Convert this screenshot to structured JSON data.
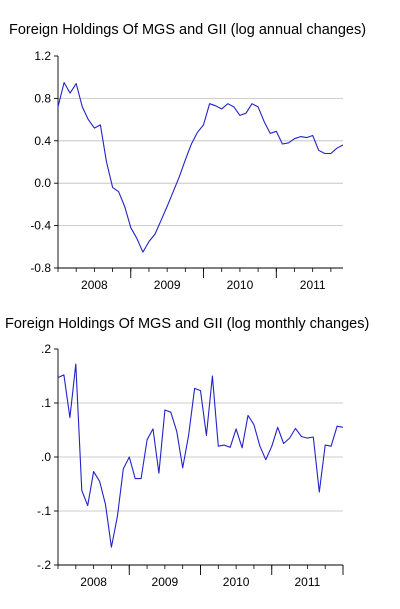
{
  "chart_data": [
    {
      "type": "line",
      "title": "Foreign Holdings Of MGS and GII (log annual changes)",
      "xlabel": "",
      "ylabel": "",
      "ylim": [
        -0.8,
        1.2
      ],
      "yticks": [
        1.2,
        0.8,
        0.4,
        0.0,
        -0.4,
        -0.8
      ],
      "ytick_labels": [
        "1.2",
        "0.8",
        "0.4",
        "0.0",
        "-0.4",
        "-0.8"
      ],
      "year_labels": [
        "2008",
        "2009",
        "2010",
        "2011"
      ],
      "grid": true,
      "color": "#2323c8",
      "x_start": "2008-01",
      "frequency": "monthly",
      "values": [
        0.72,
        0.95,
        0.85,
        0.94,
        0.72,
        0.6,
        0.52,
        0.55,
        0.2,
        -0.04,
        -0.08,
        -0.22,
        -0.42,
        -0.52,
        -0.65,
        -0.55,
        -0.48,
        -0.35,
        -0.22,
        -0.08,
        0.06,
        0.22,
        0.37,
        0.48,
        0.55,
        0.75,
        0.73,
        0.7,
        0.75,
        0.72,
        0.64,
        0.66,
        0.75,
        0.72,
        0.58,
        0.47,
        0.49,
        0.37,
        0.38,
        0.42,
        0.44,
        0.43,
        0.45,
        0.31,
        0.28,
        0.28,
        0.33,
        0.36
      ]
    },
    {
      "type": "line",
      "title": "Foreign Holdings Of MGS and GII (log monthly changes)",
      "xlabel": "",
      "ylabel": "",
      "ylim": [
        -0.2,
        0.2
      ],
      "yticks": [
        0.2,
        0.1,
        0.0,
        -0.1,
        -0.2
      ],
      "ytick_labels": [
        ".2",
        ".1",
        ".0",
        "-.1",
        "-.2"
      ],
      "year_labels": [
        "2008",
        "2009",
        "2010",
        "2011"
      ],
      "grid": true,
      "color": "#2323c8",
      "x_start": "2008-01",
      "frequency": "monthly",
      "values": [
        0.147,
        0.152,
        0.073,
        0.172,
        -0.062,
        -0.09,
        -0.027,
        -0.045,
        -0.088,
        -0.167,
        -0.11,
        -0.022,
        0.0,
        -0.04,
        -0.04,
        0.032,
        0.052,
        -0.03,
        0.087,
        0.083,
        0.047,
        -0.02,
        0.04,
        0.127,
        0.123,
        0.04,
        0.15,
        0.02,
        0.022,
        0.018,
        0.052,
        0.017,
        0.077,
        0.06,
        0.02,
        -0.005,
        0.02,
        0.055,
        0.025,
        0.035,
        0.053,
        0.038,
        0.035,
        0.037,
        -0.065,
        0.022,
        0.02,
        0.057,
        0.055
      ]
    }
  ]
}
